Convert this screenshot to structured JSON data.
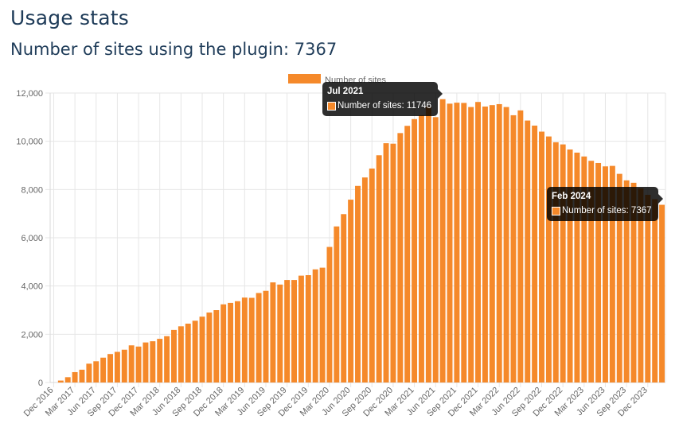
{
  "header": {
    "title": "Usage stats",
    "subtitle": "Number of sites using the plugin: 7367"
  },
  "colors": {
    "bar": "#f5892a",
    "grid": "#e6e6e6",
    "tooltip_bg": "#1b1b1b"
  },
  "chart_data": {
    "type": "bar",
    "legend": {
      "label": "Number of sites",
      "position": "top"
    },
    "ylim": [
      0,
      12000
    ],
    "y_ticks": [
      "0",
      "2,000",
      "4,000",
      "6,000",
      "8,000",
      "10,000",
      "12,000"
    ],
    "x_tick_labels": [
      "Dec 2016",
      "Mar 2017",
      "Jun 2017",
      "Sep 2017",
      "Dec 2017",
      "Mar 2018",
      "Jun 2018",
      "Sep 2018",
      "Dec 2018",
      "Mar 2019",
      "Jun 2019",
      "Sep 2019",
      "Dec 2019",
      "Mar 2020",
      "Jun 2020",
      "Sep 2020",
      "Dec 2020",
      "Mar 2021",
      "Jun 2021",
      "Sep 2021",
      "Dec 2021",
      "Mar 2022",
      "Jun 2022",
      "Sep 2022",
      "Dec 2022",
      "Mar 2023",
      "Jun 2023",
      "Sep 2023",
      "Dec 2023"
    ],
    "grid": true,
    "series": [
      {
        "name": "Number of sites",
        "x_start": "Dec 2016",
        "values": [
          0,
          80,
          220,
          430,
          530,
          780,
          880,
          1030,
          1180,
          1270,
          1360,
          1540,
          1490,
          1660,
          1710,
          1810,
          1920,
          2180,
          2330,
          2440,
          2560,
          2730,
          2900,
          3000,
          3240,
          3300,
          3370,
          3520,
          3510,
          3710,
          3800,
          4150,
          4060,
          4250,
          4250,
          4430,
          4450,
          4690,
          4760,
          5620,
          6470,
          6980,
          7580,
          8150,
          8500,
          8870,
          9420,
          9920,
          9900,
          10340,
          10640,
          10920,
          11080,
          11440,
          11000,
          11746,
          11560,
          11600,
          11590,
          11420,
          11630,
          11440,
          11500,
          11540,
          11420,
          11080,
          11280,
          10860,
          10650,
          10400,
          10200,
          9960,
          9870,
          9660,
          9530,
          9370,
          9190,
          9100,
          8960,
          8980,
          8650,
          8380,
          8280,
          8050,
          7780,
          7600,
          7367
        ]
      }
    ],
    "tooltips": [
      {
        "title": "Jul 2021",
        "label": "Number of sites: 11746"
      },
      {
        "title": "Feb 2024",
        "label": "Number of sites: 7367"
      }
    ]
  }
}
